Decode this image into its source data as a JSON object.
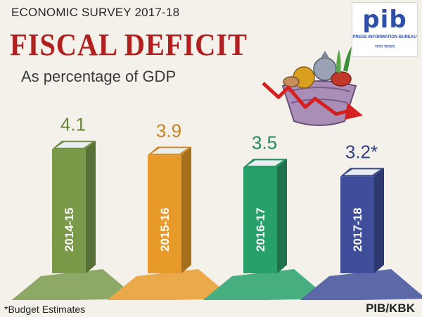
{
  "header": {
    "survey_title": "ECONOMIC SURVEY 2017-18",
    "headline": "FISCAL DEFICIT",
    "subtitle": "As percentage of GDP"
  },
  "logo": {
    "text": "pib",
    "line1": "PRESS INFORMATION BUREAU",
    "line2": "भारत सरकार"
  },
  "chart_data": {
    "type": "bar",
    "title": "FISCAL DEFICIT",
    "subtitle": "As percentage of GDP",
    "categories": [
      "2014-15",
      "2015-16",
      "2016-17",
      "2017-18"
    ],
    "values": [
      4.1,
      3.9,
      3.5,
      3.2
    ],
    "value_labels": [
      "4.1",
      "3.9",
      "3.5",
      "3.2*"
    ],
    "colors": [
      "#7a9a4a",
      "#e79a2a",
      "#27a06a",
      "#3e4e9a"
    ],
    "xlabel": "",
    "ylabel": "",
    "grid": false,
    "legend": "none"
  },
  "footer": {
    "note": "*Budget Estimates",
    "credit": "PIB/KBK"
  }
}
